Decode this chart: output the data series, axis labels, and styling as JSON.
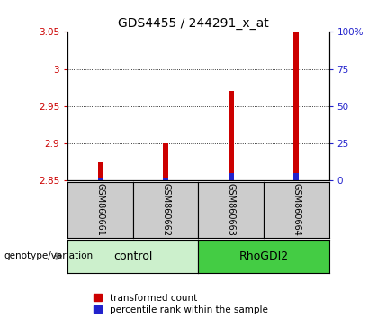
{
  "title": "GDS4455 / 244291_x_at",
  "samples": [
    "GSM860661",
    "GSM860662",
    "GSM860663",
    "GSM860664"
  ],
  "transformed_counts": [
    2.874,
    2.9,
    2.97,
    3.075
  ],
  "percentile_ranks": [
    2.0,
    2.0,
    5.0,
    5.0
  ],
  "ylim": [
    2.85,
    3.05
  ],
  "yticks": [
    2.85,
    2.9,
    2.95,
    3.0,
    3.05
  ],
  "ytick_labels_left": [
    "2.85",
    "2.9",
    "2.95",
    "3",
    "3.05"
  ],
  "right_yticks_pct": [
    0,
    25,
    50,
    75,
    100
  ],
  "right_ytick_labels": [
    "0",
    "25",
    "50",
    "75",
    "100%"
  ],
  "bar_width": 0.08,
  "red_color": "#cc0000",
  "blue_color": "#2222cc",
  "left_tick_color": "#cc0000",
  "right_tick_color": "#2222cc",
  "bg_label": "#cccccc",
  "bg_group_control": "#ccf0cc",
  "bg_group_rhodgi2": "#44cc44",
  "legend_red": "transformed count",
  "legend_blue": "percentile rank within the sample",
  "groups_info": [
    {
      "name": "control",
      "start": 0,
      "end": 2
    },
    {
      "name": "RhoGDI2",
      "start": 2,
      "end": 4
    }
  ]
}
